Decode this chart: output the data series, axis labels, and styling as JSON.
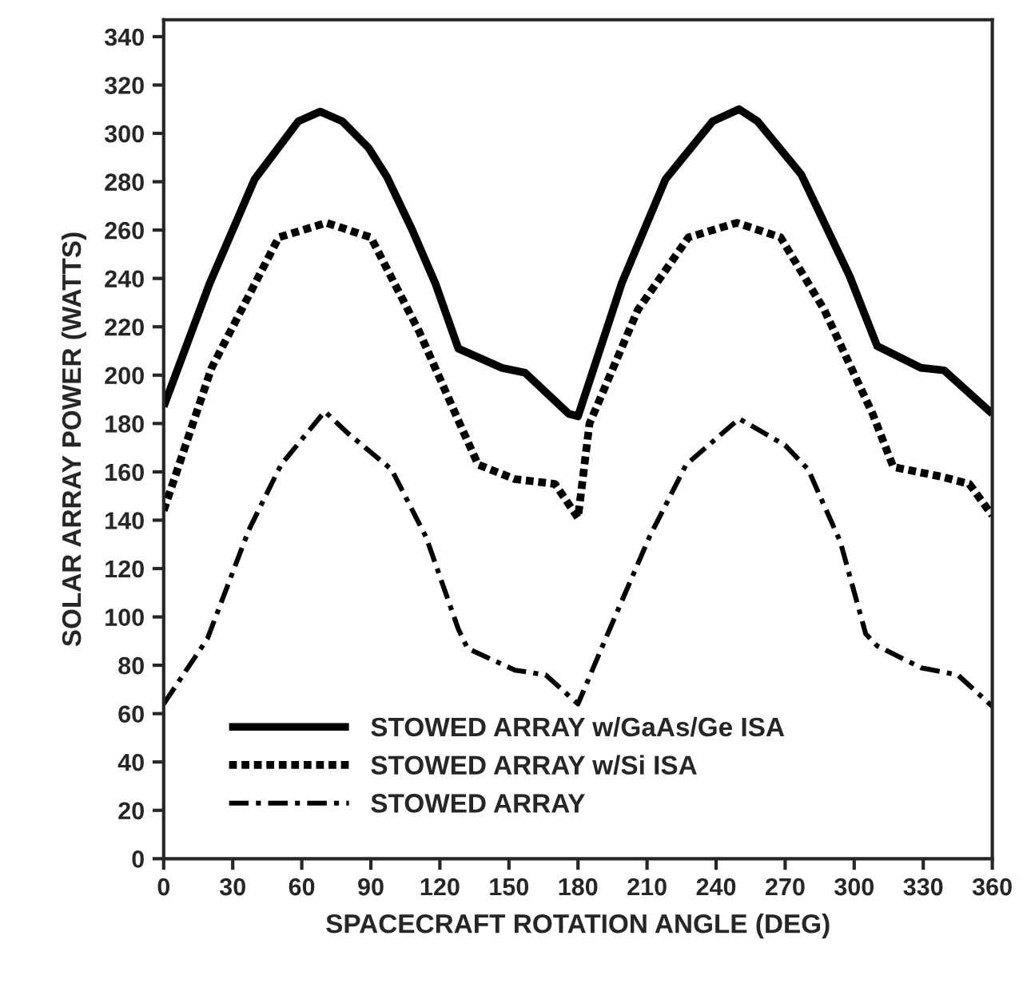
{
  "chart_data": {
    "type": "line",
    "xlabel": "SPACECRAFT ROTATION ANGLE (DEG)",
    "ylabel": "SOLAR ARRAY POWER (WATTS)",
    "xlim": [
      0,
      360
    ],
    "xticks": [
      0,
      30,
      60,
      90,
      120,
      150,
      180,
      210,
      240,
      270,
      300,
      330,
      360
    ],
    "ylim": [
      0,
      347
    ],
    "yticks": [
      0,
      20,
      40,
      60,
      80,
      100,
      120,
      140,
      160,
      180,
      200,
      220,
      240,
      260,
      280,
      300,
      320,
      340
    ],
    "grid": false,
    "legend": "bottom left",
    "marker": "none",
    "series": [
      {
        "name": "STOWED ARRAY w/GaAs/Ge ISA",
        "color": "#000000",
        "line_style": "solid",
        "x": [
          0,
          20,
          39.5,
          58.5,
          68,
          77.6,
          89,
          97,
          108,
          118,
          128,
          147,
          157,
          176,
          180,
          199,
          218,
          238.5,
          250,
          258,
          277,
          298,
          310,
          329,
          339,
          360
        ],
        "values": [
          187,
          238,
          281,
          305,
          309,
          305,
          294,
          282,
          260,
          238,
          211,
          203,
          201,
          184,
          183,
          238,
          281,
          305,
          310,
          305,
          283,
          241,
          212,
          203,
          202,
          184
        ]
      },
      {
        "name": "STOWED ARRAY w/Si ISA",
        "color": "#000000",
        "line_style": "dotted",
        "x": [
          0,
          20.8,
          50,
          70.7,
          90,
          111,
          130,
          136.6,
          152.6,
          170,
          180,
          185,
          206,
          228,
          249,
          268,
          287,
          308,
          317,
          338,
          350,
          360
        ],
        "values": [
          144,
          203,
          257,
          263,
          257,
          218,
          177,
          163,
          157,
          155,
          141,
          180,
          227,
          257,
          263,
          257,
          227,
          184,
          162,
          158,
          155,
          142
        ]
      },
      {
        "name": "STOWED ARRAY",
        "color": "#000000",
        "line_style": "dashed",
        "x": [
          0,
          19,
          37,
          51,
          70,
          80,
          99,
          114,
          128,
          132,
          152.6,
          166,
          180,
          192,
          211,
          227,
          250,
          270,
          280,
          294,
          305,
          310,
          329,
          345,
          360
        ],
        "values": [
          64,
          91,
          136,
          163,
          185,
          176,
          161,
          133,
          95,
          87,
          78,
          76,
          64,
          91,
          133,
          163,
          182,
          171,
          161,
          131,
          93,
          88,
          79,
          76,
          63
        ]
      }
    ]
  }
}
